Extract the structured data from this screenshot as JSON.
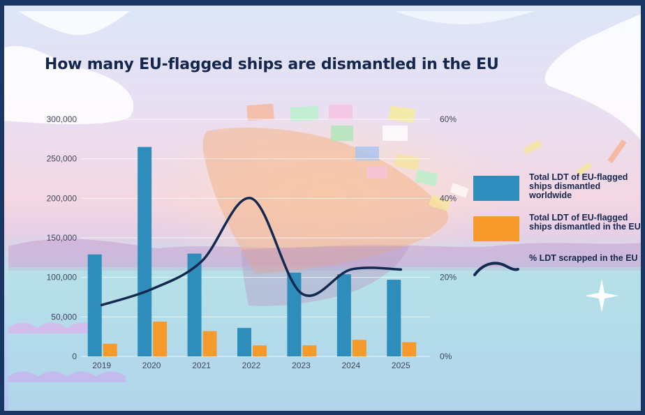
{
  "title": "How many EU-flagged ships are dismantled in the EU",
  "colors": {
    "worldwide": "#2f8dbb",
    "eu": "#f79a2c",
    "percent": "#14294f",
    "frame": "#1a3763"
  },
  "legend": {
    "items": [
      {
        "key": "worldwide",
        "label": "Total LDT of EU-flagged ships dismantled worldwide"
      },
      {
        "key": "eu",
        "label": "Total LDT of EU-flagged ships dismantled in the EU"
      },
      {
        "key": "percent",
        "label": "% LDT scrapped in the EU"
      }
    ]
  },
  "chart_data": {
    "type": "bar",
    "title": "How many EU-flagged ships are dismantled in the EU",
    "categories": [
      "2019",
      "2020",
      "2021",
      "2022",
      "2023",
      "2024",
      "2025"
    ],
    "series": [
      {
        "name": "Total LDT of EU-flagged ships dismantled worldwide",
        "type": "bar",
        "axis": "left",
        "values": [
          129000,
          265000,
          130000,
          36000,
          106000,
          104000,
          97000
        ]
      },
      {
        "name": "Total LDT of EU-flagged ships dismantled in the EU",
        "type": "bar",
        "axis": "left",
        "values": [
          16000,
          44000,
          32000,
          14000,
          14000,
          21000,
          18000
        ]
      },
      {
        "name": "% LDT scrapped in the EU",
        "type": "line",
        "axis": "right",
        "values": [
          13,
          17,
          24,
          40,
          16,
          22,
          22
        ]
      }
    ],
    "y_axis": {
      "ylim": [
        0,
        300000
      ],
      "ticks": [
        "0",
        "50,000",
        "100,000",
        "150,000",
        "200,000",
        "250,000",
        "300,000"
      ],
      "tick_values": [
        0,
        50000,
        100000,
        150000,
        200000,
        250000,
        300000
      ]
    },
    "y2_axis": {
      "ylim": [
        0,
        60
      ],
      "ticks": [
        "0%",
        "20%",
        "40%",
        "60%"
      ],
      "tick_values": [
        0,
        20,
        40,
        60
      ]
    },
    "grid": true,
    "legend_position": "right"
  }
}
